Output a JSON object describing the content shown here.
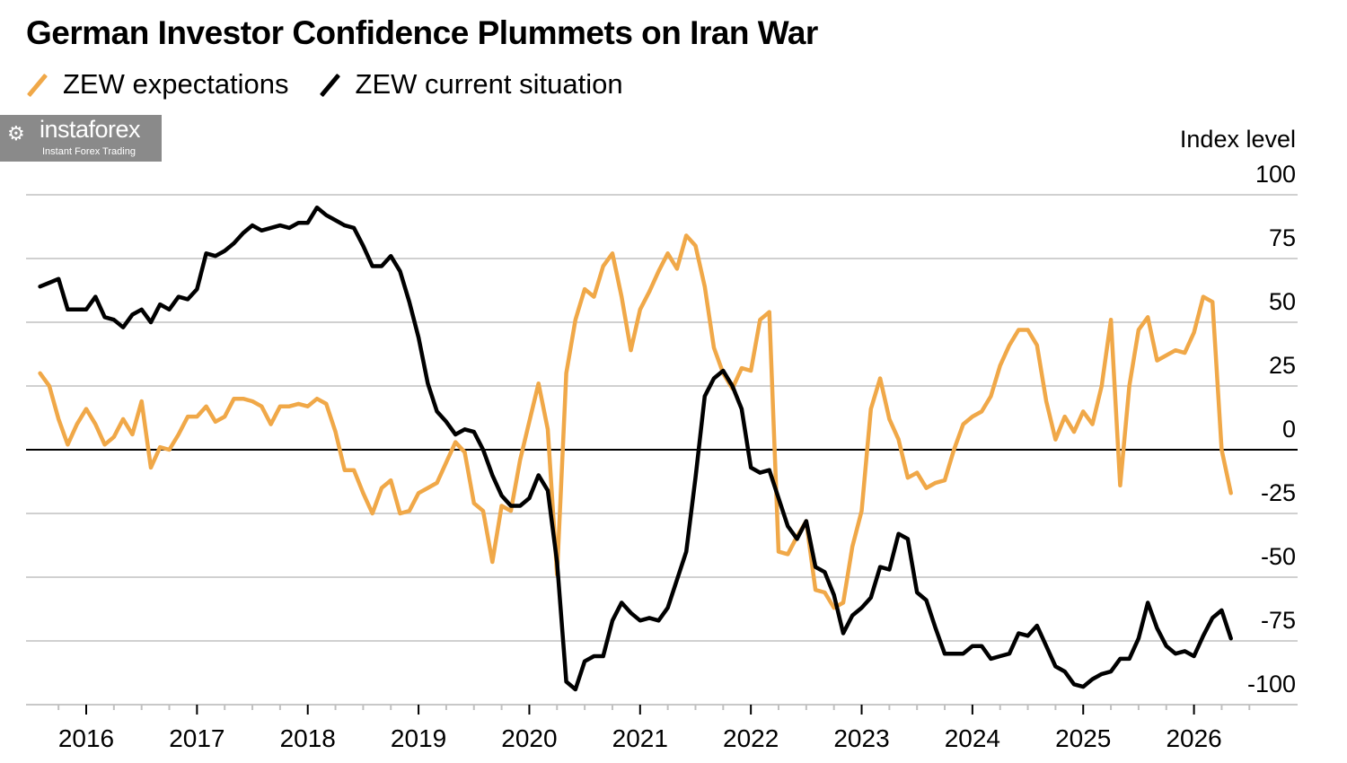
{
  "title": "German Investor Confidence Plummets on Iran War",
  "watermark": {
    "name": "instaforex",
    "tagline": "Instant Forex Trading"
  },
  "chart_data": {
    "type": "line",
    "title": "German Investor Confidence Plummets on Iran War",
    "ylabel": "Index level",
    "ylim": [
      -100,
      100
    ],
    "yticks": [
      100,
      75,
      50,
      25,
      0,
      -25,
      -50,
      -75,
      -100
    ],
    "xticks": [
      "2016",
      "2017",
      "2018",
      "2019",
      "2020",
      "2021",
      "2022",
      "2023",
      "2024",
      "2025",
      "2026"
    ],
    "xlim": [
      "2015-08",
      "2026-05"
    ],
    "grid": true,
    "legend": "top-left",
    "series": [
      {
        "name": "ZEW expectations",
        "color": "#f0a848",
        "values": [
          30,
          25,
          12,
          2,
          10,
          16,
          10,
          2,
          5,
          12,
          6,
          19,
          -7,
          1,
          0,
          6,
          13,
          13,
          17,
          11,
          13,
          20,
          20,
          19,
          17,
          10,
          17,
          17,
          18,
          17,
          20,
          18,
          7,
          -8,
          -8,
          -17,
          -25,
          -15,
          -12,
          -25,
          -24,
          -17,
          -15,
          -13,
          -5,
          3,
          -1,
          -21,
          -24,
          -44,
          -22,
          -24,
          -4,
          11,
          26,
          8,
          -49,
          30,
          51,
          63,
          60,
          72,
          77,
          60,
          39,
          55,
          62,
          70,
          77,
          71,
          84,
          80,
          64,
          40,
          30,
          24,
          32,
          31,
          51,
          54,
          -40,
          -41,
          -34,
          -28,
          -55,
          -56,
          -62,
          -60,
          -38,
          -24,
          16,
          28,
          12,
          4,
          -11,
          -9,
          -15,
          -13,
          -12,
          0,
          10,
          13,
          15,
          21,
          33,
          41,
          47,
          47,
          41,
          19,
          4,
          13,
          7,
          15,
          10,
          25,
          51,
          -14,
          25,
          47,
          52,
          35,
          37,
          39,
          38,
          46,
          60,
          58,
          0,
          -17
        ]
      },
      {
        "name": "ZEW current situation",
        "color": "#000000",
        "values": [
          64,
          65.5,
          67,
          55,
          55,
          55,
          60,
          52,
          51,
          48,
          53,
          55,
          50,
          57,
          55,
          60,
          59,
          63,
          77,
          76,
          78,
          81,
          85,
          88,
          86,
          87,
          88,
          87,
          89,
          89,
          95,
          92,
          90,
          88,
          87,
          80,
          72,
          72,
          76,
          70,
          58,
          44,
          26,
          15,
          11,
          6,
          8,
          7,
          0,
          -10,
          -18,
          -22,
          -22,
          -19,
          -10,
          -16,
          -44,
          -91,
          -94,
          -83,
          -81,
          -81,
          -67,
          -60,
          -64,
          -67,
          -66,
          -67,
          -62,
          -51,
          -40,
          -11,
          21,
          28,
          31,
          25,
          16,
          -7,
          -9,
          -8,
          -19,
          -30,
          -35,
          -28,
          -46,
          -48,
          -57,
          -72,
          -65,
          -62,
          -58,
          -46,
          -47,
          -33,
          -35,
          -56,
          -59,
          -70,
          -80,
          -80,
          -80,
          -77,
          -77,
          -82,
          -81,
          -80,
          -72,
          -73,
          -69,
          -77,
          -85,
          -87,
          -92,
          -93,
          -90,
          -88,
          -87,
          -82,
          -82,
          -74,
          -60,
          -70,
          -77,
          -80,
          -79,
          -81,
          -73,
          -66,
          -63,
          -74
        ]
      }
    ]
  }
}
